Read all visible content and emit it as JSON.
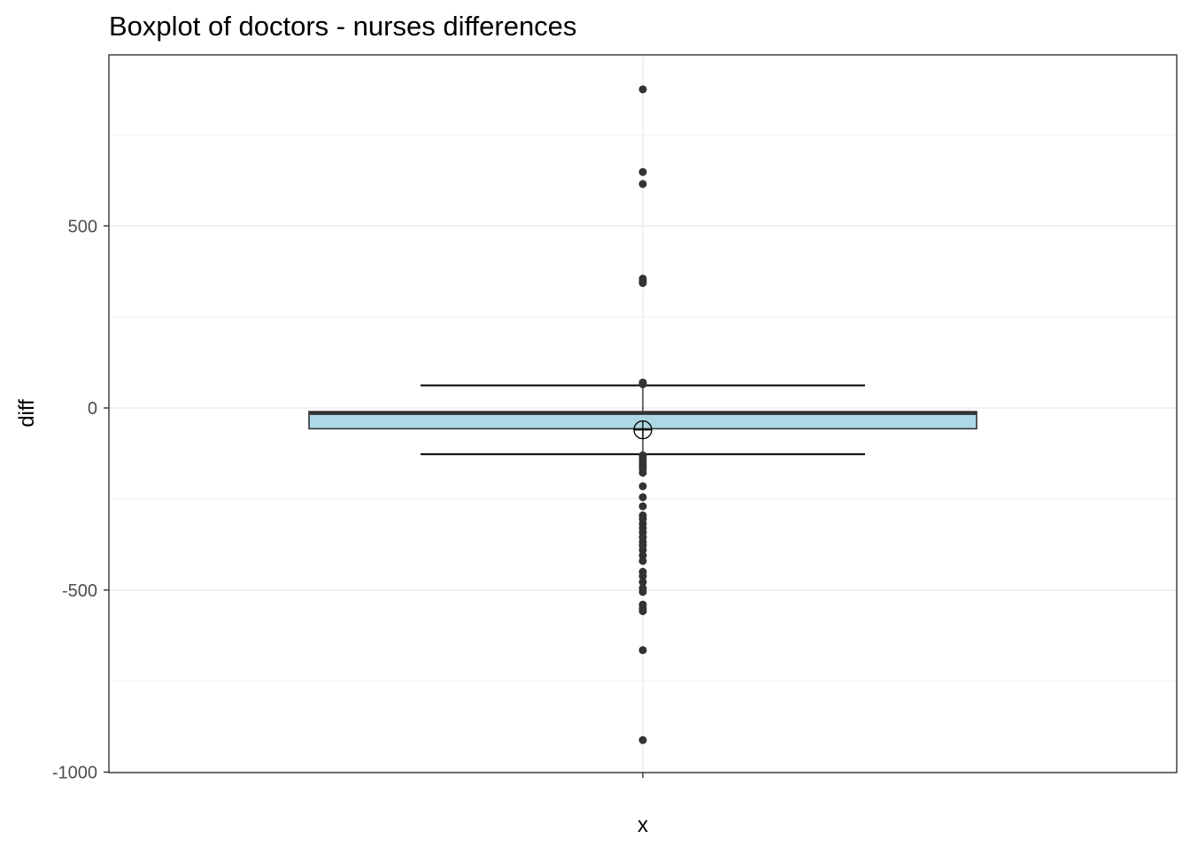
{
  "chart_data": {
    "type": "boxplot",
    "title": "Boxplot of doctors - nurses differences",
    "xlabel": "x",
    "ylabel": "diff",
    "x_categories": [
      ""
    ],
    "ylim": [
      -1000,
      900
    ],
    "y_ticks": [
      -1000,
      -500,
      0,
      500
    ],
    "y_tick_labels": [
      "-1000",
      "-500",
      "0",
      "500"
    ],
    "grid": true,
    "legend": "none",
    "colors": {
      "box_fill": "#add8e6",
      "box_stroke": "#333333",
      "point": "#333333",
      "grid": "#ebebeb",
      "panel_border": "#333333"
    },
    "box": {
      "q1": -57,
      "median": -15,
      "q3": -10,
      "whisker_low": -127,
      "whisker_high": 62,
      "mean": -60
    },
    "outliers": [
      875,
      648,
      615,
      355,
      348,
      343,
      70,
      65,
      -130,
      -137,
      -145,
      -153,
      -160,
      -168,
      -178,
      -215,
      -245,
      -270,
      -295,
      -305,
      -318,
      -330,
      -342,
      -355,
      -368,
      -378,
      -390,
      -405,
      -420,
      -450,
      -462,
      -478,
      -495,
      -505,
      -540,
      -550,
      -558,
      -665,
      -912
    ]
  }
}
